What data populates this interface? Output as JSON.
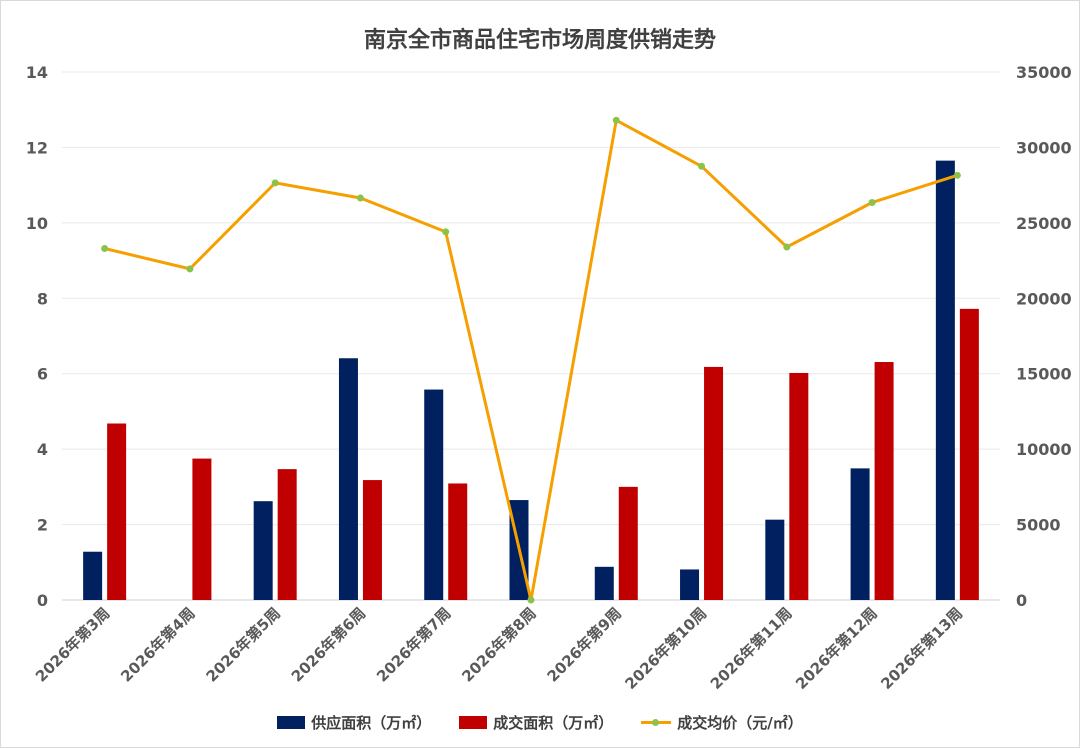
{
  "chart_data": {
    "type": "bar",
    "title": "南京全市商品住宅市场周度供销走势",
    "categories": [
      "2026年第3周",
      "2026年第4周",
      "2026年第5周",
      "2026年第6周",
      "2026年第7周",
      "2026年第8周",
      "2026年第9周",
      "2026年第10周",
      "2026年第11周",
      "2026年第12周",
      "2026年第13周"
    ],
    "series": [
      {
        "name": "供应面积（万㎡）",
        "type": "bar",
        "axis": "left",
        "color": "#002060",
        "values": [
          1.28,
          0,
          2.62,
          6.41,
          5.58,
          2.65,
          0.88,
          0.81,
          2.13,
          3.49,
          11.65
        ]
      },
      {
        "name": "成交面积（万㎡）",
        "type": "bar",
        "axis": "left",
        "color": "#C00000",
        "values": [
          4.68,
          3.75,
          3.47,
          3.18,
          3.09,
          0,
          3.0,
          6.18,
          6.02,
          6.31,
          7.72
        ]
      },
      {
        "name": "成交均价（元/㎡）",
        "type": "line",
        "axis": "right",
        "color": "#F5A000",
        "marker_color": "#8BC34A",
        "values": [
          23300,
          21950,
          27650,
          26650,
          24400,
          0,
          31800,
          28750,
          23400,
          26350,
          28150
        ]
      }
    ],
    "ylim_left": [
      0,
      14
    ],
    "yticks_left": [
      0,
      2,
      4,
      6,
      8,
      10,
      12,
      14
    ],
    "ylim_right": [
      0,
      35000
    ],
    "yticks_right": [
      0,
      5000,
      10000,
      15000,
      20000,
      25000,
      30000,
      35000
    ],
    "grid": true,
    "legend_position": "bottom"
  }
}
